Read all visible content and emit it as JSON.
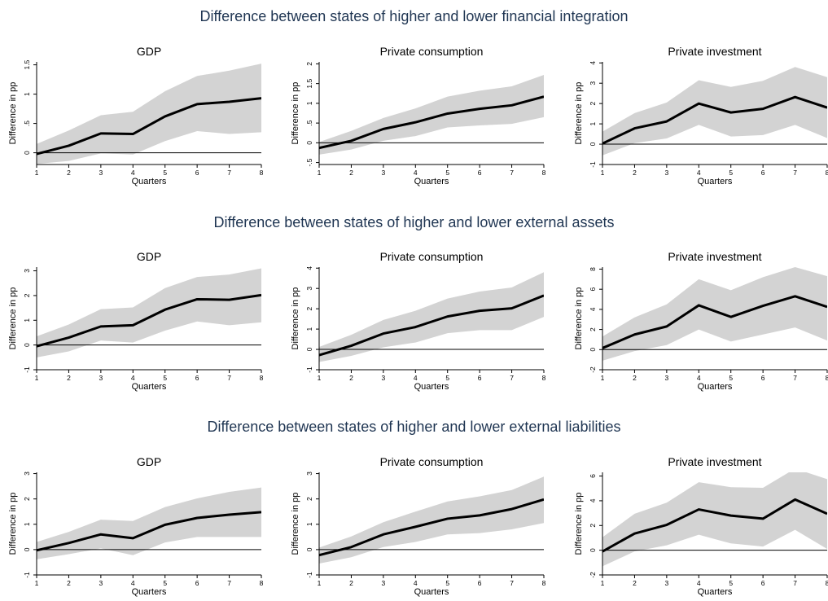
{
  "colors": {
    "band": "#d3d3d3",
    "line": "#000000",
    "title": "#1f3552",
    "zero": "#000000"
  },
  "sections": [
    {
      "title": "Difference between states of higher and lower financial integration"
    },
    {
      "title": "Difference between states of higher and lower external assets"
    },
    {
      "title": "Difference between states of higher and lower external liabilities"
    }
  ],
  "chart_data": [
    {
      "type": "area",
      "title": "GDP",
      "xlabel": "Quarters",
      "ylabel": "Difference in pp",
      "x": [
        1,
        2,
        3,
        4,
        5,
        6,
        7,
        8
      ],
      "ylim": [
        -0.2,
        1.55
      ],
      "yticks": [
        0,
        0.5,
        1,
        1.5
      ],
      "ytick_labels": [
        "0",
        ".5",
        "1",
        "1.5"
      ],
      "series": [
        {
          "values": [
            -0.02,
            0.12,
            0.33,
            0.32,
            0.62,
            0.83,
            0.87,
            0.93
          ]
        }
      ],
      "band": {
        "lower": [
          -0.19,
          -0.14,
          -0.01,
          -0.03,
          0.2,
          0.37,
          0.32,
          0.35
        ],
        "upper": [
          0.15,
          0.38,
          0.64,
          0.7,
          1.05,
          1.31,
          1.4,
          1.52
        ]
      }
    },
    {
      "type": "area",
      "title": "Private consumption",
      "xlabel": "Quarters",
      "ylabel": "Difference in pp",
      "x": [
        1,
        2,
        3,
        4,
        5,
        6,
        7,
        8
      ],
      "ylim": [
        -0.55,
        2.05
      ],
      "yticks": [
        -0.5,
        0,
        0.5,
        1,
        1.5,
        2
      ],
      "ytick_labels": [
        "-.5",
        "0",
        ".5",
        "1",
        "1.5",
        "2"
      ],
      "series": [
        {
          "values": [
            -0.13,
            0.05,
            0.35,
            0.52,
            0.74,
            0.86,
            0.95,
            1.17
          ]
        }
      ],
      "band": {
        "lower": [
          -0.3,
          -0.17,
          0.05,
          0.17,
          0.39,
          0.44,
          0.48,
          0.65
        ],
        "upper": [
          0.02,
          0.3,
          0.63,
          0.87,
          1.17,
          1.32,
          1.43,
          1.72
        ]
      }
    },
    {
      "type": "area",
      "title": "Private investment",
      "xlabel": "Quarters",
      "ylabel": "Difference in pp",
      "x": [
        1,
        2,
        3,
        4,
        5,
        6,
        7,
        8
      ],
      "ylim": [
        -1,
        4.05
      ],
      "yticks": [
        -1,
        0,
        1,
        2,
        3,
        4
      ],
      "ytick_labels": [
        "-1",
        "0",
        "1",
        "2",
        "3",
        "4"
      ],
      "series": [
        {
          "values": [
            0.03,
            0.78,
            1.12,
            2.0,
            1.56,
            1.74,
            2.32,
            1.8
          ]
        }
      ],
      "band": {
        "lower": [
          -0.55,
          0.05,
          0.28,
          0.95,
          0.38,
          0.45,
          0.95,
          0.3
        ],
        "upper": [
          0.62,
          1.53,
          2.05,
          3.15,
          2.82,
          3.12,
          3.8,
          3.3
        ]
      }
    },
    {
      "type": "area",
      "title": "GDP",
      "xlabel": "Quarters",
      "ylabel": "Difference in pp",
      "x": [
        1,
        2,
        3,
        4,
        5,
        6,
        7,
        8
      ],
      "ylim": [
        -1,
        3.15
      ],
      "yticks": [
        -1,
        0,
        1,
        2,
        3
      ],
      "ytick_labels": [
        "-1",
        "0",
        "1",
        "2",
        "3"
      ],
      "series": [
        {
          "values": [
            -0.05,
            0.3,
            0.75,
            0.8,
            1.43,
            1.85,
            1.83,
            2.02
          ]
        }
      ],
      "band": {
        "lower": [
          -0.5,
          -0.26,
          0.18,
          0.1,
          0.58,
          0.95,
          0.8,
          0.92
        ],
        "upper": [
          0.35,
          0.83,
          1.45,
          1.52,
          2.3,
          2.75,
          2.85,
          3.1
        ]
      }
    },
    {
      "type": "area",
      "title": "Private consumption",
      "xlabel": "Quarters",
      "ylabel": "Difference in pp",
      "x": [
        1,
        2,
        3,
        4,
        5,
        6,
        7,
        8
      ],
      "ylim": [
        -1,
        4.05
      ],
      "yticks": [
        -1,
        0,
        1,
        2,
        3,
        4
      ],
      "ytick_labels": [
        "-1",
        "0",
        "1",
        "2",
        "3",
        "4"
      ],
      "series": [
        {
          "values": [
            -0.28,
            0.18,
            0.78,
            1.1,
            1.62,
            1.9,
            2.02,
            2.65
          ]
        }
      ],
      "band": {
        "lower": [
          -0.62,
          -0.32,
          0.1,
          0.34,
          0.8,
          0.95,
          0.95,
          1.6
        ],
        "upper": [
          0.12,
          0.72,
          1.45,
          1.9,
          2.5,
          2.85,
          3.05,
          3.8
        ]
      }
    },
    {
      "type": "area",
      "title": "Private investment",
      "xlabel": "Quarters",
      "ylabel": "Difference in pp",
      "x": [
        1,
        2,
        3,
        4,
        5,
        6,
        7,
        8
      ],
      "ylim": [
        -2,
        8.2
      ],
      "yticks": [
        -2,
        0,
        2,
        4,
        6,
        8
      ],
      "ytick_labels": [
        "-2",
        "0",
        "2",
        "4",
        "6",
        "8"
      ],
      "series": [
        {
          "values": [
            0.15,
            1.5,
            2.3,
            4.4,
            3.25,
            4.35,
            5.3,
            4.25
          ]
        }
      ],
      "band": {
        "lower": [
          -1.1,
          -0.15,
          0.45,
          2.0,
          0.8,
          1.5,
          2.2,
          0.9
        ],
        "upper": [
          1.3,
          3.2,
          4.5,
          7.0,
          5.9,
          7.2,
          8.2,
          7.3
        ]
      }
    },
    {
      "type": "area",
      "title": "GDP",
      "xlabel": "Quarters",
      "ylabel": "Difference in pp",
      "x": [
        1,
        2,
        3,
        4,
        5,
        6,
        7,
        8
      ],
      "ylim": [
        -1,
        3.05
      ],
      "yticks": [
        -1,
        0,
        1,
        2,
        3
      ],
      "ytick_labels": [
        "-1",
        "0",
        "1",
        "2",
        "3"
      ],
      "series": [
        {
          "values": [
            -0.03,
            0.26,
            0.6,
            0.45,
            0.98,
            1.25,
            1.38,
            1.48
          ]
        }
      ],
      "band": {
        "lower": [
          -0.38,
          -0.18,
          0.05,
          -0.22,
          0.28,
          0.5,
          0.5,
          0.5
        ],
        "upper": [
          0.3,
          0.7,
          1.18,
          1.13,
          1.68,
          2.02,
          2.28,
          2.45
        ]
      }
    },
    {
      "type": "area",
      "title": "Private consumption",
      "xlabel": "Quarters",
      "ylabel": "Difference in pp",
      "x": [
        1,
        2,
        3,
        4,
        5,
        6,
        7,
        8
      ],
      "ylim": [
        -1,
        3.05
      ],
      "yticks": [
        -1,
        0,
        1,
        2,
        3
      ],
      "ytick_labels": [
        "-1",
        "0",
        "1",
        "2",
        "3"
      ],
      "series": [
        {
          "values": [
            -0.22,
            0.1,
            0.6,
            0.9,
            1.22,
            1.35,
            1.6,
            1.98
          ]
        }
      ],
      "band": {
        "lower": [
          -0.55,
          -0.3,
          0.1,
          0.3,
          0.6,
          0.65,
          0.8,
          1.05
        ],
        "upper": [
          0.08,
          0.52,
          1.08,
          1.5,
          1.9,
          2.1,
          2.35,
          2.88
        ]
      }
    },
    {
      "type": "area",
      "title": "Private investment",
      "xlabel": "Quarters",
      "ylabel": "Difference in pp",
      "x": [
        1,
        2,
        3,
        4,
        5,
        6,
        7,
        8
      ],
      "ylim": [
        -2,
        6.3
      ],
      "yticks": [
        -2,
        0,
        2,
        4,
        6
      ],
      "ytick_labels": [
        "-2",
        "0",
        "2",
        "4",
        "6"
      ],
      "series": [
        {
          "values": [
            -0.1,
            1.35,
            2.05,
            3.3,
            2.8,
            2.55,
            4.1,
            2.95
          ]
        }
      ],
      "band": {
        "lower": [
          -1.3,
          -0.1,
          0.4,
          1.25,
          0.55,
          0.3,
          1.65,
          0.1
        ],
        "upper": [
          1.05,
          2.95,
          3.85,
          5.5,
          5.1,
          5.05,
          6.6,
          5.75
        ]
      }
    }
  ]
}
